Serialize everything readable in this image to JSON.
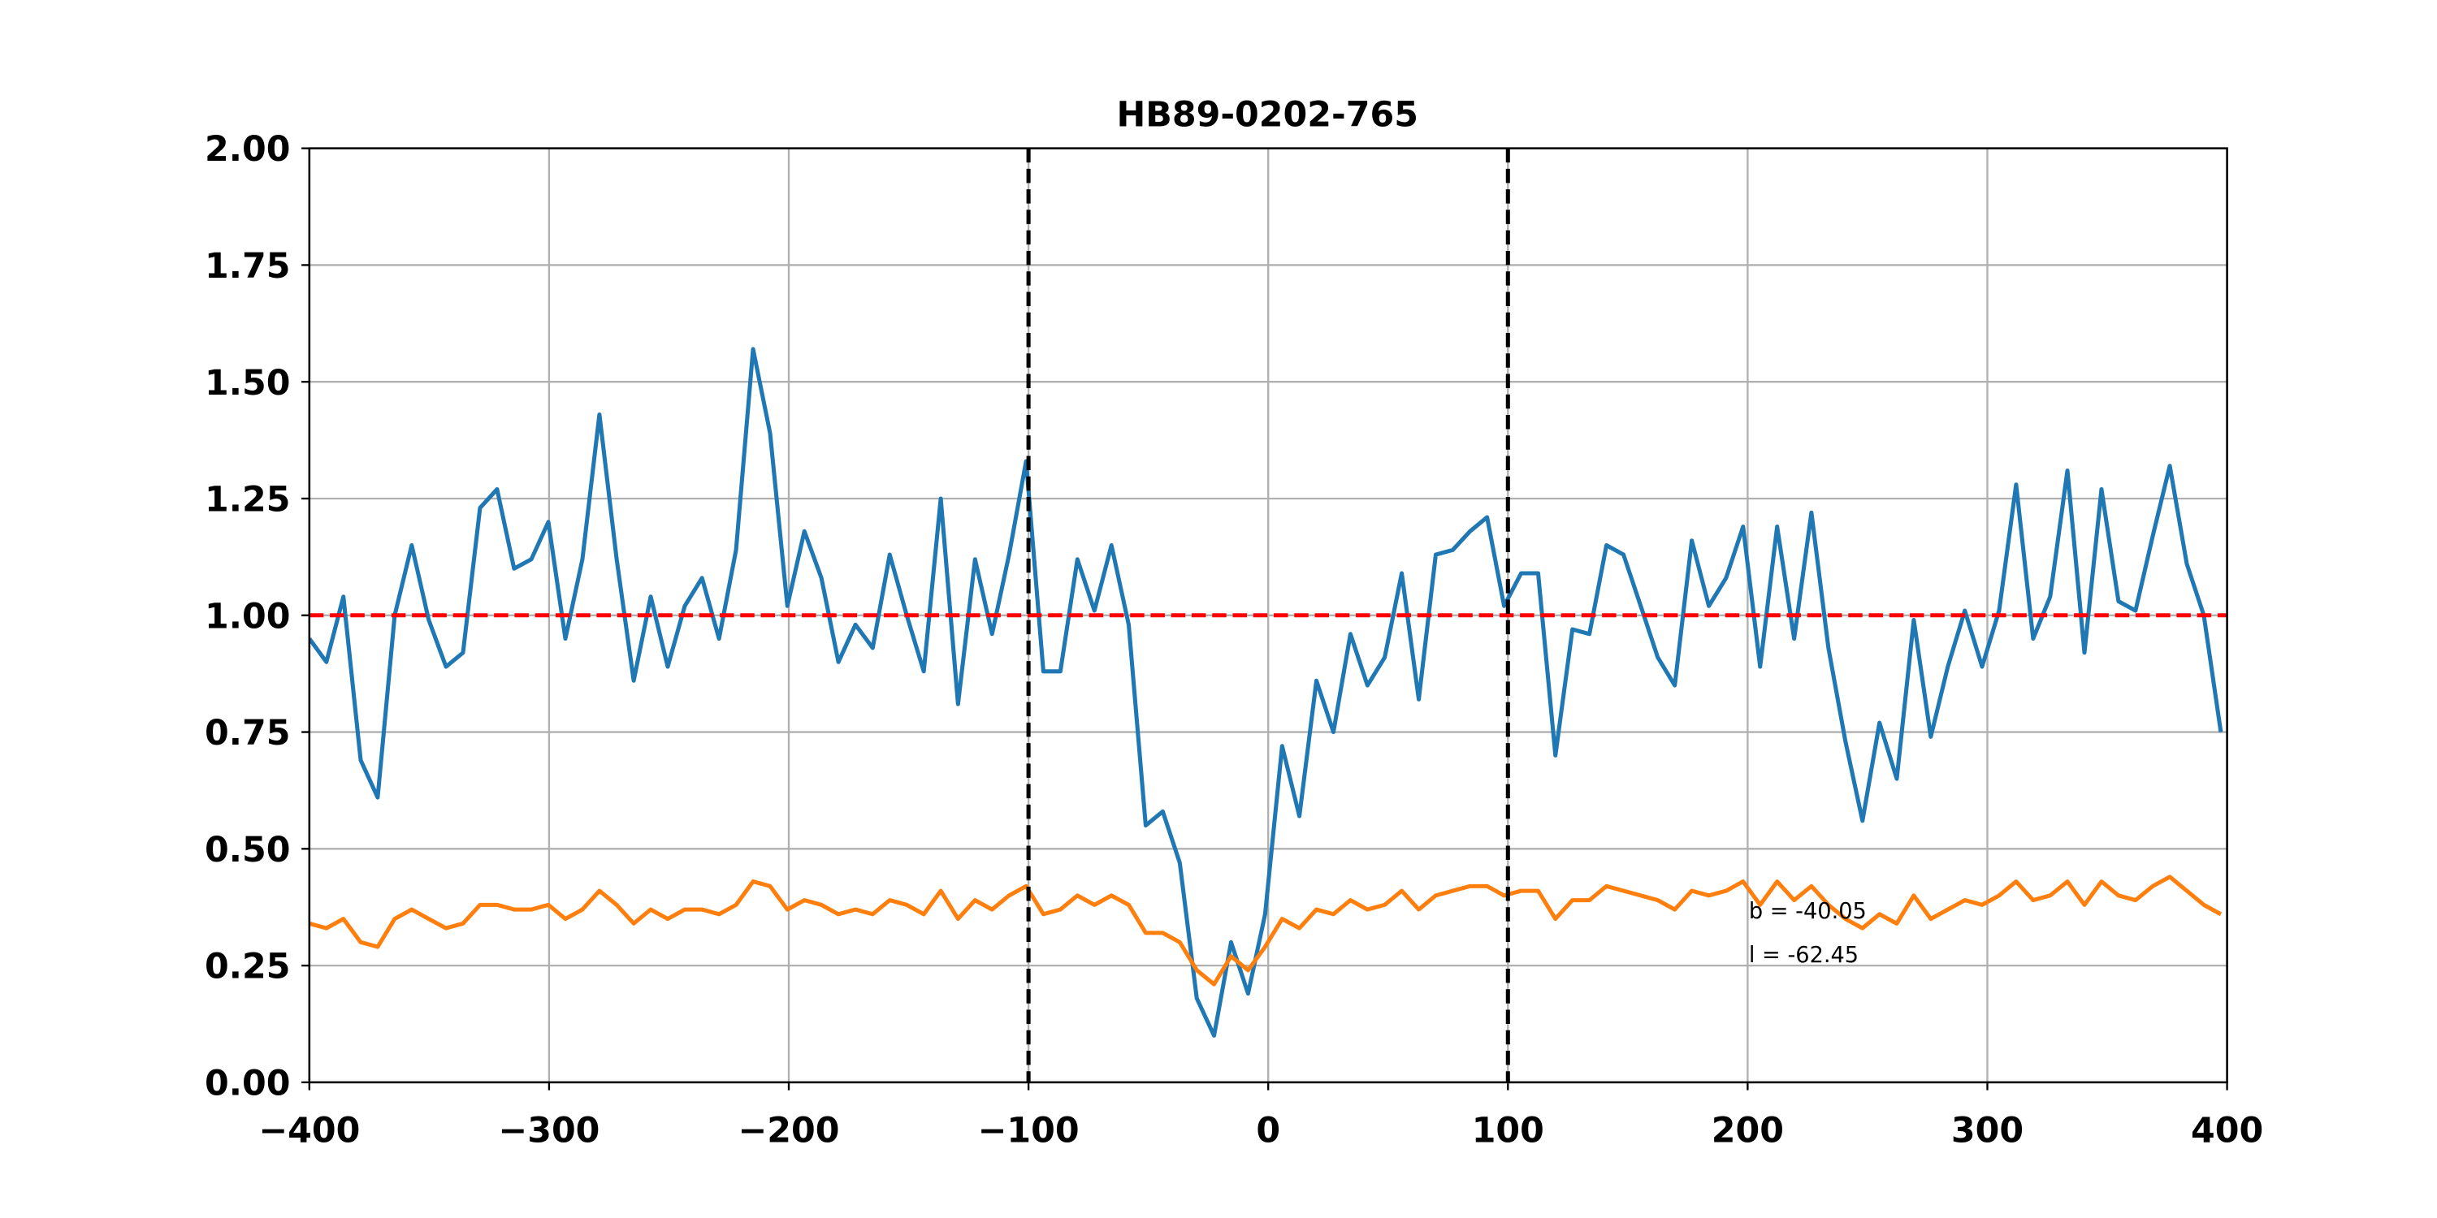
{
  "chart_data": {
    "type": "line",
    "title": "HB89-0202-765",
    "x": [
      -400,
      -392.9,
      -385.8,
      -378.6,
      -371.5,
      -364.4,
      -357.3,
      -350.2,
      -343.0,
      -335.9,
      -328.8,
      -321.7,
      -314.6,
      -307.4,
      -300.3,
      -293.2,
      -286.1,
      -279.0,
      -271.8,
      -264.7,
      -257.6,
      -250.5,
      -243.4,
      -236.2,
      -229.1,
      -222.0,
      -214.9,
      -207.8,
      -200.6,
      -193.5,
      -186.4,
      -179.3,
      -172.2,
      -165.0,
      -157.9,
      -150.8,
      -143.7,
      -136.6,
      -129.4,
      -122.3,
      -115.2,
      -108.1,
      -101.0,
      -93.8,
      -86.7,
      -79.6,
      -72.5,
      -65.4,
      -58.2,
      -51.1,
      -44.0,
      -36.9,
      -29.8,
      -22.6,
      -15.5,
      -8.4,
      -1.3,
      5.8,
      13.0,
      20.1,
      27.2,
      34.3,
      41.4,
      48.6,
      55.7,
      62.8,
      69.9,
      77.0,
      84.2,
      91.3,
      98.4,
      105.5,
      112.6,
      119.8,
      126.9,
      134.0,
      141.1,
      148.2,
      155.4,
      162.5,
      169.6,
      176.7,
      183.8,
      191.0,
      198.1,
      205.2,
      212.3,
      219.4,
      226.6,
      233.7,
      240.8,
      247.9,
      255.0,
      262.2,
      269.3,
      276.4,
      283.5,
      290.6,
      297.8,
      304.9,
      312.0,
      319.1,
      326.2,
      333.4,
      340.5,
      347.6,
      354.7,
      361.8,
      369.0,
      376.1,
      383.2,
      390.3,
      397.4
    ],
    "series": [
      {
        "color": "#1f77b4",
        "values": [
          0.95,
          0.9,
          1.04,
          0.69,
          0.61,
          1.0,
          1.15,
          0.99,
          0.89,
          0.92,
          1.23,
          1.27,
          1.1,
          1.12,
          1.2,
          0.95,
          1.12,
          1.43,
          1.12,
          0.86,
          1.04,
          0.89,
          1.02,
          1.08,
          0.95,
          1.14,
          1.57,
          1.39,
          1.02,
          1.18,
          1.08,
          0.9,
          0.98,
          0.93,
          1.13,
          1.0,
          0.88,
          1.25,
          0.81,
          1.12,
          0.96,
          1.13,
          1.33,
          0.88,
          0.88,
          1.12,
          1.01,
          1.15,
          0.98,
          0.55,
          0.58,
          0.47,
          0.18,
          0.1,
          0.3,
          0.19,
          0.36,
          0.72,
          0.57,
          0.86,
          0.75,
          0.96,
          0.85,
          0.91,
          1.09,
          0.82,
          1.13,
          1.14,
          1.18,
          1.21,
          1.02,
          1.09,
          1.09,
          0.7,
          0.97,
          0.96,
          1.15,
          1.13,
          1.02,
          0.91,
          0.85,
          1.16,
          1.02,
          1.08,
          1.19,
          0.89,
          1.19,
          0.95,
          1.22,
          0.93,
          0.73,
          0.56,
          0.77,
          0.65,
          0.99,
          0.74,
          0.89,
          1.01,
          0.89,
          1.01,
          1.28,
          0.95,
          1.04,
          1.31,
          0.92,
          1.27,
          1.03,
          1.01,
          1.17,
          1.32,
          1.11,
          1.0,
          0.75
        ]
      },
      {
        "color": "#ff7f0e",
        "values": [
          0.34,
          0.33,
          0.35,
          0.3,
          0.29,
          0.35,
          0.37,
          0.35,
          0.33,
          0.34,
          0.38,
          0.38,
          0.37,
          0.37,
          0.38,
          0.35,
          0.37,
          0.41,
          0.38,
          0.34,
          0.37,
          0.35,
          0.37,
          0.37,
          0.36,
          0.38,
          0.43,
          0.42,
          0.37,
          0.39,
          0.38,
          0.36,
          0.37,
          0.36,
          0.39,
          0.38,
          0.36,
          0.41,
          0.35,
          0.39,
          0.37,
          0.4,
          0.42,
          0.36,
          0.37,
          0.4,
          0.38,
          0.4,
          0.38,
          0.32,
          0.32,
          0.3,
          0.24,
          0.21,
          0.27,
          0.24,
          0.29,
          0.35,
          0.33,
          0.37,
          0.36,
          0.39,
          0.37,
          0.38,
          0.41,
          0.37,
          0.4,
          0.41,
          0.42,
          0.42,
          0.4,
          0.41,
          0.41,
          0.35,
          0.39,
          0.39,
          0.42,
          0.41,
          0.4,
          0.39,
          0.37,
          0.41,
          0.4,
          0.41,
          0.43,
          0.38,
          0.43,
          0.39,
          0.42,
          0.38,
          0.35,
          0.33,
          0.36,
          0.34,
          0.4,
          0.35,
          0.37,
          0.39,
          0.38,
          0.4,
          0.43,
          0.39,
          0.4,
          0.43,
          0.38,
          0.43,
          0.4,
          0.39,
          0.42,
          0.44,
          0.41,
          0.38,
          0.36
        ]
      }
    ],
    "hline": {
      "value": 1,
      "color": "#ff0000"
    },
    "vlines": [
      -100,
      100
    ],
    "annotations": [
      "b = -40.05",
      "l = -62.45"
    ],
    "xlim": [
      -400,
      400
    ],
    "ylim": [
      0,
      2
    ],
    "xticks": [
      {
        "value": -400,
        "label": "−400"
      },
      {
        "value": -300,
        "label": "−300"
      },
      {
        "value": -200,
        "label": "−200"
      },
      {
        "value": -100,
        "label": "−100"
      },
      0,
      100,
      200,
      300,
      400
    ],
    "yticks": [
      {
        "value": 0,
        "label": "0.00"
      },
      {
        "value": 0.25,
        "label": "0.25"
      },
      {
        "value": 0.5,
        "label": "0.50"
      },
      {
        "value": 0.75,
        "label": "0.75"
      },
      {
        "value": 1,
        "label": "1.00"
      },
      {
        "value": 1.25,
        "label": "1.25"
      },
      {
        "value": 1.5,
        "label": "1.50"
      },
      {
        "value": 1.75,
        "label": "1.75"
      },
      {
        "value": 2,
        "label": "2.00"
      }
    ],
    "grid": true
  }
}
